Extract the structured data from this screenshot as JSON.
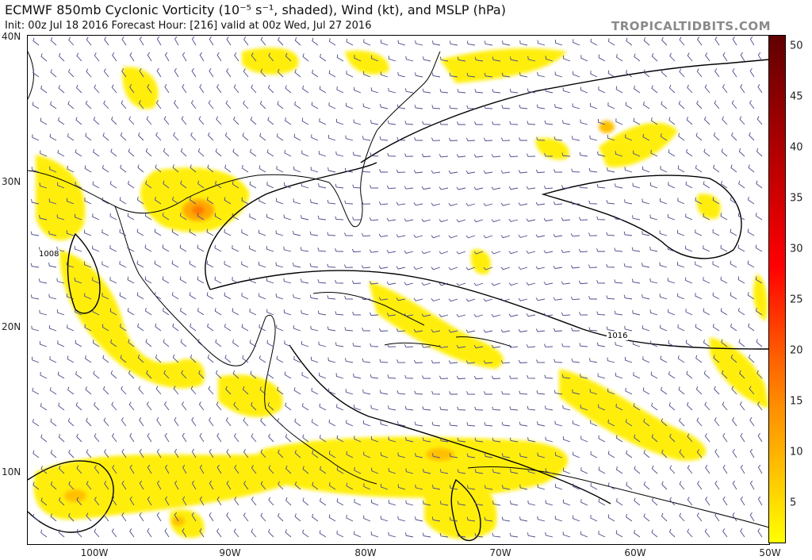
{
  "header": {
    "title": "ECMWF 850mb Cyclonic Vorticity (10⁻⁵ s⁻¹, shaded), Wind (kt), and MSLP (hPa)",
    "subtitle": "Init: 00z Jul 18 2016   Forecast Hour: [216]   valid at 00z Wed, Jul 27 2016",
    "credit": "TROPICALTIDBITS.COM"
  },
  "map": {
    "lat_labels": [
      "40N",
      "30N",
      "20N",
      "10N"
    ],
    "lon_labels": [
      "100W",
      "90W",
      "80W",
      "70W",
      "60W",
      "50W"
    ],
    "isobar_labels": [
      "1008",
      "1016"
    ]
  },
  "colorbar": {
    "labels": [
      "50",
      "45",
      "40",
      "35",
      "30",
      "25",
      "20",
      "15",
      "10",
      "5"
    ],
    "colors": [
      "#ffff00",
      "#ffd800",
      "#ffb000",
      "#ff8c00",
      "#ff6000",
      "#ff3000",
      "#ff0000",
      "#e00000",
      "#c00000",
      "#a00000",
      "#800000",
      "#600000"
    ]
  }
}
